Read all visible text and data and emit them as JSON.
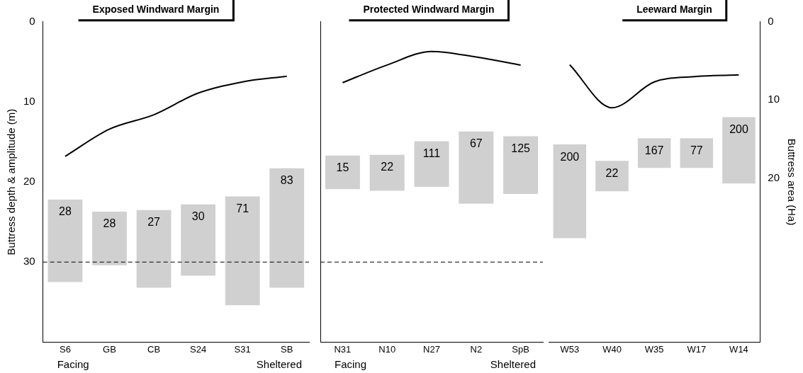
{
  "chart_data": [
    {
      "type": "bar",
      "title": "Exposed Windward Margin",
      "ylabel": "Buttress depth & amplitude (m)",
      "categories": [
        "S6",
        "GB",
        "CB",
        "S24",
        "S31",
        "SB"
      ],
      "series": [
        {
          "color": "#d0d0d0",
          "base": [
            22.2,
            23.7,
            23.5,
            22.8,
            21.8,
            18.3
          ],
          "values": [
            10.3,
            6.7,
            9.7,
            8.9,
            13.6,
            14.9
          ]
        },
        {
          "type": "line",
          "color": "#000000",
          "values": [
            16.8,
            13.4,
            11.6,
            8.9,
            7.5,
            6.8
          ]
        }
      ],
      "ylim": [
        40,
        0
      ],
      "yticks": [
        0,
        10,
        20,
        30
      ],
      "ref_lines": [
        {
          "axis": "y",
          "value": 30,
          "label": null
        }
      ],
      "marker": "none",
      "legend": false,
      "annotations": [
        "28",
        "28",
        "27",
        "30",
        "71",
        "83",
        "Facing",
        "Sheltered"
      ]
    },
    {
      "type": "bar",
      "title": "Protected Windward Margin",
      "categories": [
        "N31",
        "N10",
        "N27",
        "N2",
        "SpB"
      ],
      "series": [
        {
          "color": "#d0d0d0",
          "base": [
            16.7,
            16.6,
            14.9,
            13.7,
            14.3
          ],
          "values": [
            4.2,
            4.5,
            5.7,
            9.0,
            7.2
          ]
        },
        {
          "type": "line",
          "color": "#000000",
          "values": [
            7.6,
            5.4,
            3.7,
            4.4,
            5.4
          ]
        }
      ],
      "ylim": [
        40,
        0
      ],
      "ref_lines": [
        {
          "axis": "y",
          "value": 30,
          "label": null
        }
      ],
      "tick_labels": "x",
      "marker": "none",
      "legend": false,
      "annotations": [
        "15",
        "22",
        "111",
        "67",
        "125",
        "Facing",
        "Sheltered"
      ]
    },
    {
      "type": "bar",
      "title": "Leeward Margin",
      "y2label": "Buttress area (Ha)",
      "categories": [
        "W53",
        "W40",
        "W35",
        "W17",
        "W14"
      ],
      "series": [
        {
          "axis": "y2",
          "color": "#d0d0d0",
          "base": [
            15.7,
            17.8,
            14.9,
            14.9,
            12.2
          ],
          "values": [
            12.0,
            3.9,
            3.8,
            3.8,
            8.5
          ]
        },
        {
          "type": "line",
          "axis": "y2",
          "color": "#000000",
          "values": [
            5.5,
            11.0,
            7.7,
            7.0,
            6.8
          ]
        }
      ],
      "y2lim": [
        41,
        0
      ],
      "y2ticks": [
        0,
        10,
        20
      ],
      "marker": "none",
      "legend": false,
      "annotations": [
        "200",
        "22",
        "167",
        "77",
        "200"
      ]
    }
  ]
}
